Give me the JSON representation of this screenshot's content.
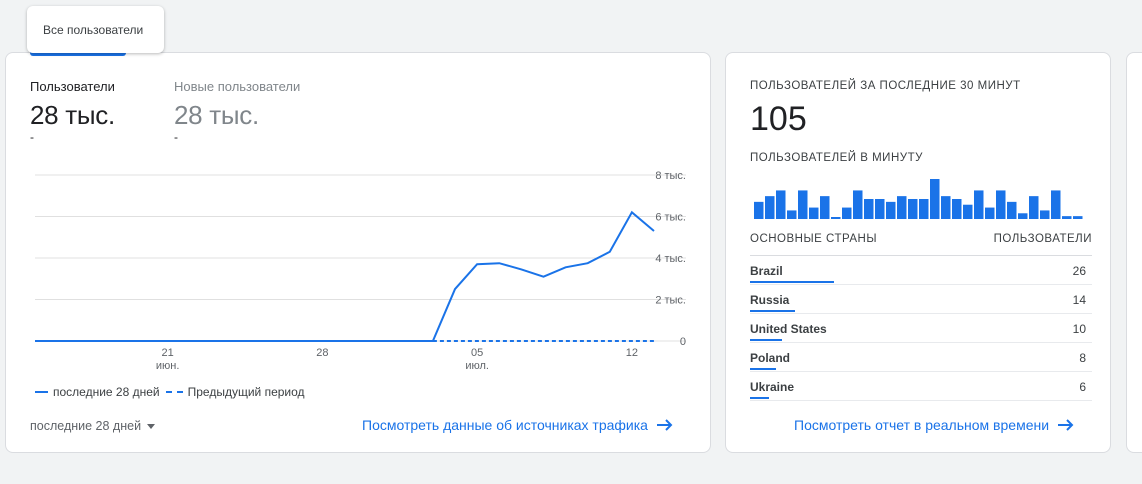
{
  "tab": {
    "label": "Все пользователи"
  },
  "metrics": [
    {
      "label": "Пользователи",
      "value": "28 тыс.",
      "delta": "-"
    },
    {
      "label": "Новые пользователи",
      "value": "28 тыс.",
      "delta": "-"
    }
  ],
  "chart_data": {
    "type": "line",
    "x_ticks": [
      {
        "day": "21",
        "month": "июн."
      },
      {
        "day": "28",
        "month": ""
      },
      {
        "day": "05",
        "month": "июл."
      },
      {
        "day": "12",
        "month": ""
      }
    ],
    "x_dates": [
      "06-15",
      "06-16",
      "06-17",
      "06-18",
      "06-19",
      "06-20",
      "06-21",
      "06-22",
      "06-23",
      "06-24",
      "06-25",
      "06-26",
      "06-27",
      "06-28",
      "06-29",
      "06-30",
      "07-01",
      "07-02",
      "07-03",
      "07-04",
      "07-05",
      "07-06",
      "07-07",
      "07-08",
      "07-09",
      "07-10",
      "07-11",
      "07-12",
      "07-13"
    ],
    "y_ticks": [
      "8 тыс.",
      "6 тыс.",
      "4 тыс.",
      "2 тыс.",
      "0"
    ],
    "ylim": [
      0,
      8000
    ],
    "series": [
      {
        "name": "последние 28 дней",
        "style": "solid",
        "values": [
          0,
          0,
          0,
          0,
          0,
          0,
          0,
          0,
          0,
          0,
          0,
          0,
          0,
          0,
          0,
          0,
          0,
          0,
          0,
          2500,
          3700,
          3750,
          3450,
          3100,
          3550,
          3750,
          4300,
          6200,
          5300
        ]
      },
      {
        "name": "Предыдущий период",
        "style": "dashed",
        "values": [
          null,
          null,
          null,
          null,
          null,
          null,
          null,
          null,
          null,
          null,
          null,
          null,
          null,
          null,
          null,
          null,
          null,
          null,
          0,
          0,
          0,
          0,
          0,
          0,
          0,
          0,
          0,
          0,
          0
        ]
      }
    ],
    "colors": {
      "line": "#1a73e8",
      "grid": "#e0e0e0"
    }
  },
  "legend": {
    "current": "последние 28 дней",
    "previous": "Предыдущий период"
  },
  "range_select": {
    "value": "последние 28 дней"
  },
  "link_traffic": {
    "label": "Посмотреть данные об источниках трафика",
    "icon": "arrow-right-icon"
  },
  "realtime": {
    "title": "ПОЛЬЗОВАТЕЛЕЙ ЗА ПОСЛЕДНИЕ 30 МИНУТ",
    "value": "105",
    "per_minute_title": "ПОЛЬЗОВАТЕЛЕЙ В МИНУТУ",
    "per_minute": [
      3,
      4,
      5,
      1.5,
      5,
      2,
      4,
      0.3,
      2,
      5,
      3.5,
      3.5,
      3,
      4,
      3.5,
      3.5,
      7,
      4,
      3.5,
      2.5,
      5,
      2,
      5,
      3,
      1,
      4,
      1.5,
      5,
      0.5,
      0.5
    ],
    "table": {
      "col_country": "ОСНОВНЫЕ СТРАНЫ",
      "col_users": "ПОЛЬЗОВАТЕЛИ",
      "rows": [
        {
          "country": "Brazil",
          "users": "26",
          "share": 1.0
        },
        {
          "country": "Russia",
          "users": "14",
          "share": 0.54
        },
        {
          "country": "United States",
          "users": "10",
          "share": 0.38
        },
        {
          "country": "Poland",
          "users": "8",
          "share": 0.31
        },
        {
          "country": "Ukraine",
          "users": "6",
          "share": 0.23
        }
      ]
    },
    "link": {
      "label": "Посмотреть отчет в реальном времени",
      "icon": "arrow-right-icon"
    }
  }
}
